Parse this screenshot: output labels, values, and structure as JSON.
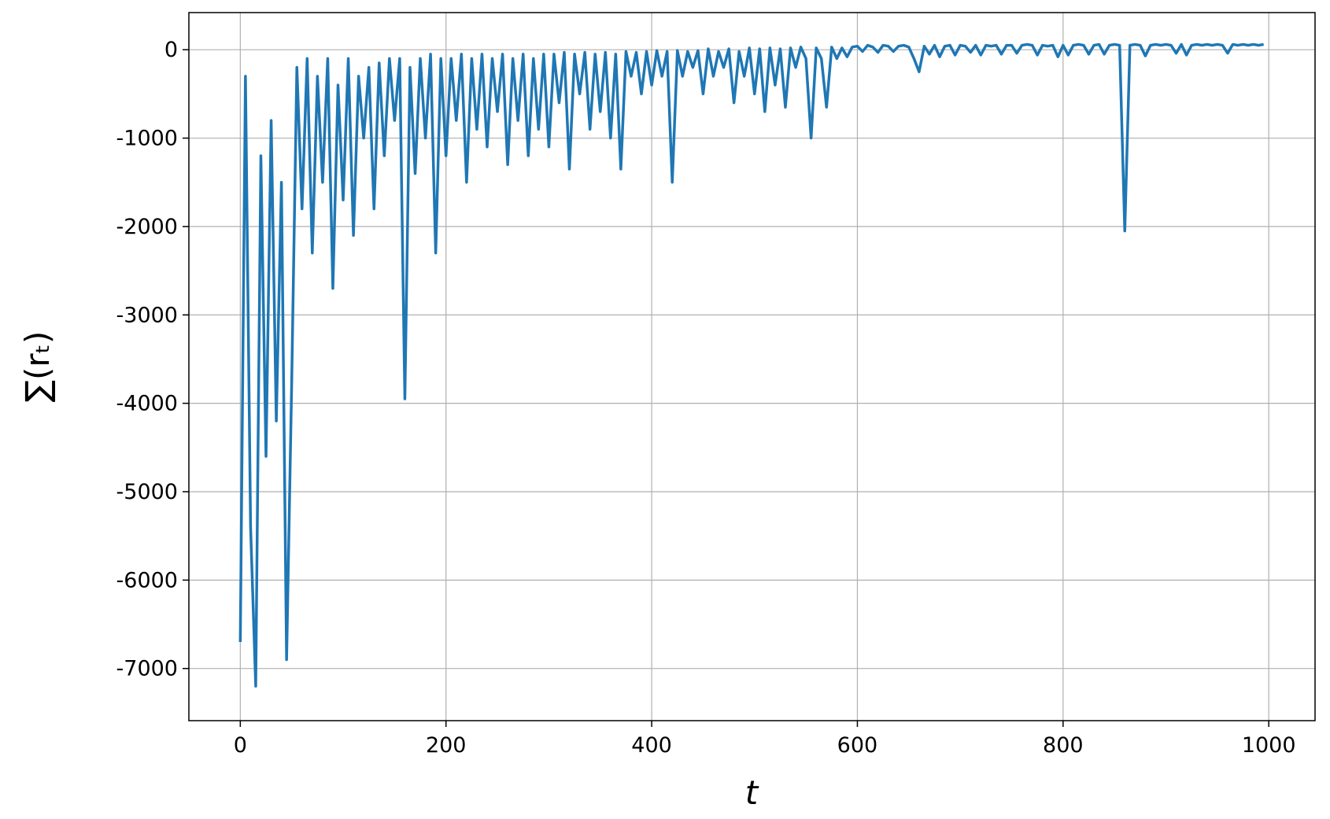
{
  "chart_data": {
    "type": "line",
    "xlabel": "t",
    "ylabel": "∑(rₜ)",
    "color": "#1f77b4",
    "grid": true,
    "xlim": [
      -50,
      1045
    ],
    "ylim": [
      -7590,
      420
    ],
    "xticks": [
      0,
      200,
      400,
      600,
      800,
      1000
    ],
    "yticks": [
      -7000,
      -6000,
      -5000,
      -4000,
      -3000,
      -2000,
      -1000,
      0
    ],
    "x": [
      0,
      5,
      10,
      15,
      20,
      25,
      30,
      35,
      40,
      45,
      50,
      55,
      60,
      65,
      70,
      75,
      80,
      85,
      90,
      95,
      100,
      105,
      110,
      115,
      120,
      125,
      130,
      135,
      140,
      145,
      150,
      155,
      160,
      165,
      170,
      175,
      180,
      185,
      190,
      195,
      200,
      205,
      210,
      215,
      220,
      225,
      230,
      235,
      240,
      245,
      250,
      255,
      260,
      265,
      270,
      275,
      280,
      285,
      290,
      295,
      300,
      305,
      310,
      315,
      320,
      325,
      330,
      335,
      340,
      345,
      350,
      355,
      360,
      365,
      370,
      375,
      380,
      385,
      390,
      395,
      400,
      405,
      410,
      415,
      420,
      425,
      430,
      435,
      440,
      445,
      450,
      455,
      460,
      465,
      470,
      475,
      480,
      485,
      490,
      495,
      500,
      505,
      510,
      515,
      520,
      525,
      530,
      535,
      540,
      545,
      550,
      555,
      560,
      565,
      570,
      575,
      580,
      585,
      590,
      595,
      600,
      605,
      610,
      615,
      620,
      625,
      630,
      635,
      640,
      645,
      650,
      655,
      660,
      665,
      670,
      675,
      680,
      685,
      690,
      695,
      700,
      705,
      710,
      715,
      720,
      725,
      730,
      735,
      740,
      745,
      750,
      755,
      760,
      765,
      770,
      775,
      780,
      785,
      790,
      795,
      800,
      805,
      810,
      815,
      820,
      825,
      830,
      835,
      840,
      845,
      850,
      855,
      860,
      865,
      870,
      875,
      880,
      885,
      890,
      895,
      900,
      905,
      910,
      915,
      920,
      925,
      930,
      935,
      940,
      945,
      950,
      955,
      960,
      965,
      970,
      975,
      980,
      985,
      990,
      995
    ],
    "values": [
      -6700,
      -300,
      -5400,
      -7200,
      -1200,
      -4600,
      -800,
      -4200,
      -1500,
      -6900,
      -3750,
      -200,
      -1800,
      -100,
      -2300,
      -300,
      -1500,
      -100,
      -2700,
      -400,
      -1700,
      -100,
      -2100,
      -300,
      -1000,
      -200,
      -1800,
      -150,
      -1200,
      -100,
      -800,
      -100,
      -3950,
      -200,
      -1400,
      -100,
      -1000,
      -50,
      -2300,
      -100,
      -1200,
      -100,
      -800,
      -50,
      -1500,
      -100,
      -900,
      -50,
      -1100,
      -100,
      -700,
      -50,
      -1300,
      -100,
      -800,
      -50,
      -1200,
      -100,
      -900,
      -50,
      -1100,
      -50,
      -600,
      -30,
      -1350,
      -50,
      -500,
      -30,
      -900,
      -50,
      -700,
      -30,
      -1000,
      -50,
      -1350,
      -20,
      -300,
      -30,
      -500,
      -20,
      -400,
      -10,
      -300,
      -20,
      -1500,
      -10,
      -300,
      -20,
      -200,
      -10,
      -500,
      10,
      -300,
      -20,
      -200,
      10,
      -600,
      -20,
      -300,
      20,
      -500,
      10,
      -700,
      20,
      -400,
      10,
      -650,
      20,
      -200,
      30,
      -100,
      -1000,
      20,
      -100,
      -650,
      30,
      -100,
      20,
      -80,
      30,
      40,
      -20,
      50,
      30,
      -30,
      50,
      40,
      -20,
      40,
      50,
      30,
      -100,
      -250,
      40,
      -50,
      50,
      -80,
      40,
      50,
      -60,
      50,
      40,
      -30,
      50,
      -60,
      50,
      40,
      50,
      -50,
      50,
      50,
      -40,
      50,
      60,
      50,
      -60,
      50,
      40,
      50,
      -80,
      50,
      -60,
      50,
      60,
      50,
      -50,
      50,
      60,
      -50,
      50,
      60,
      50,
      -2050,
      50,
      60,
      50,
      -70,
      50,
      60,
      50,
      60,
      50,
      -40,
      60,
      -60,
      50,
      60,
      50,
      60,
      50,
      60,
      50,
      -40,
      60,
      50,
      60,
      50,
      60,
      50,
      60
    ]
  }
}
